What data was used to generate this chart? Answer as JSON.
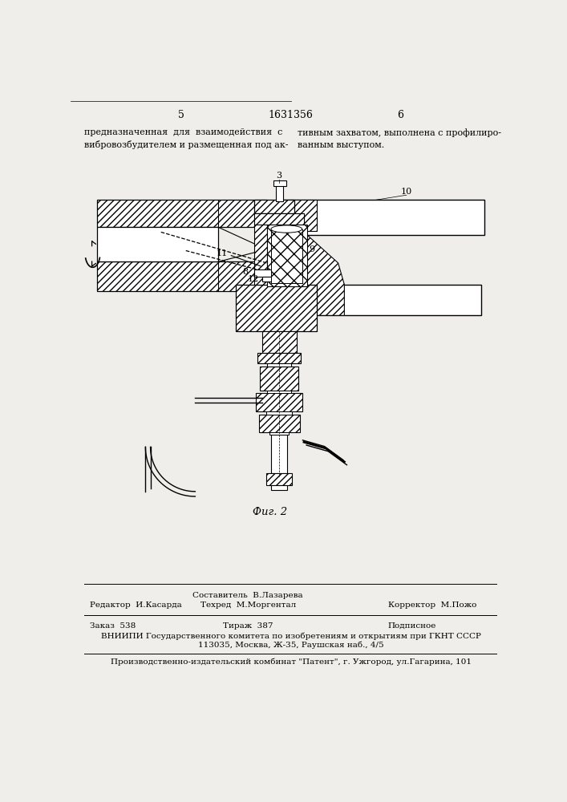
{
  "bg_color": "#f0eeea",
  "page_number_left": "5",
  "page_number_center": "1631356",
  "page_number_right": "6",
  "header_text_left": "предназначенная  для  взаимодействия  с\nвибровозбудителем и размещенная под ак-",
  "header_text_right": "тивным захватом, выполнена с профилиро-\nванным выступом.",
  "fig_caption": "Фиг. 2",
  "footer_col1_line1": "Редактор  И.Касарда",
  "footer_col2_line1": "Составитель  В.Лазарева",
  "footer_col2_line2": "Техред  М.Моргентал",
  "footer_col3_line1": "Корректор  М.Пожо",
  "footer_order": "Заказ  538",
  "footer_tirazh": "Тираж  387",
  "footer_podpisnoe": "Подписное",
  "footer_vniipи_line1": "ВНИИПИ Государственного комитета по изобретениям и открытиям при ГКНТ СССР",
  "footer_vniipи_line2": "113035, Москва, Ж-35, Раушская наб., 4/5",
  "footer_factory": "Производственно-издательский комбинат \"Патент\", г. Ужгород, ул.Гагарина, 101"
}
